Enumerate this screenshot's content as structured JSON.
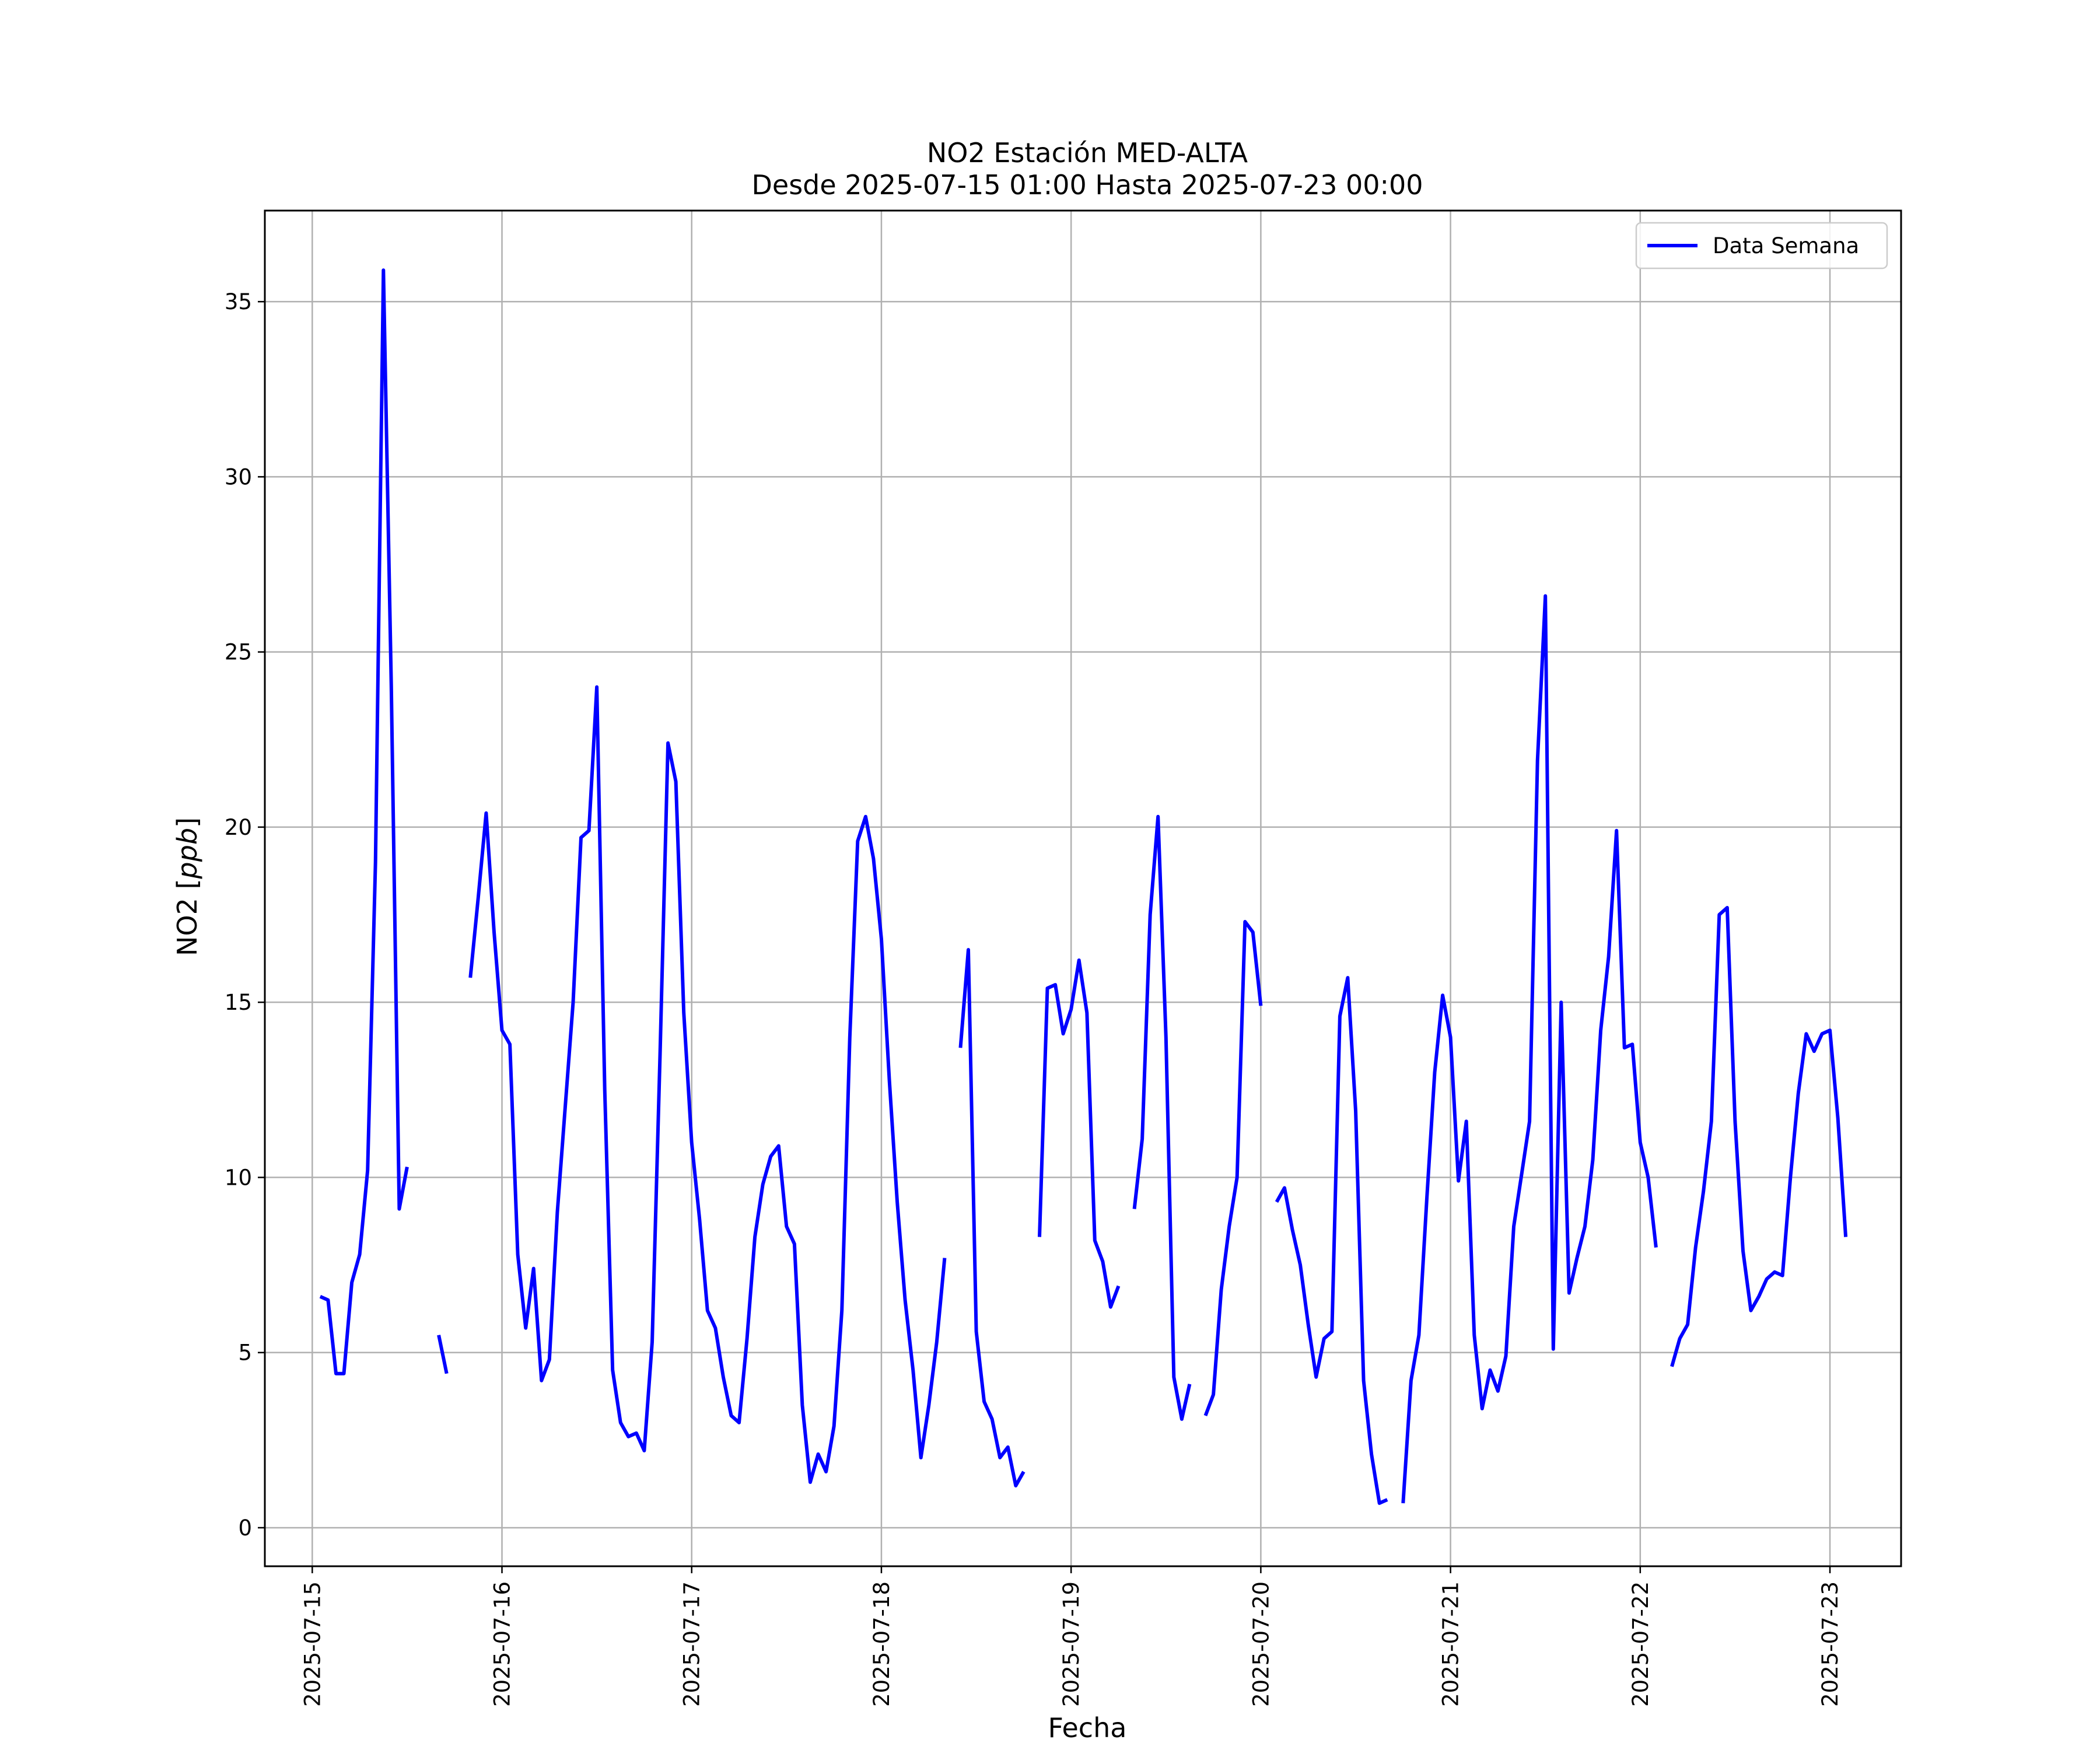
{
  "chart_data": {
    "type": "line",
    "title": "NO2 Estación MED-ALTA",
    "subtitle": "Desde 2025-07-15 01:00 Hasta 2025-07-23 00:00",
    "xlabel": "Fecha",
    "ylabel_prefix": "NO2 [",
    "ylabel_unit": "ppb",
    "ylabel_suffix": "]",
    "xlim": [
      "2025-07-14 18:00",
      "2025-07-23 09:00"
    ],
    "ylim": [
      -1.1,
      37.6
    ],
    "x_ticks": [
      "2025-07-15",
      "2025-07-16",
      "2025-07-17",
      "2025-07-18",
      "2025-07-19",
      "2025-07-20",
      "2025-07-21",
      "2025-07-22",
      "2025-07-23"
    ],
    "y_ticks": [
      0,
      5,
      10,
      15,
      20,
      25,
      30,
      35
    ],
    "grid": true,
    "legend_position": "upper-right",
    "colors": {
      "series": "#0000ff",
      "grid": "#b0b0b0",
      "frame": "#000000"
    },
    "series": [
      {
        "name": "Data Semana",
        "start": "2025-07-15 01:00",
        "interval_hours": 1,
        "values": [
          6.6,
          6.5,
          4.4,
          4.4,
          7.0,
          7.8,
          10.2,
          19.0,
          35.9,
          24.0,
          9.1,
          10.3,
          null,
          null,
          null,
          5.5,
          4.4,
          null,
          null,
          15.7,
          18.0,
          20.4,
          17.0,
          14.2,
          13.8,
          7.8,
          5.7,
          7.4,
          4.2,
          4.8,
          9.0,
          12.0,
          15.0,
          19.7,
          19.9,
          24.0,
          12.5,
          4.5,
          3.0,
          2.6,
          2.7,
          2.2,
          5.3,
          13.5,
          22.4,
          21.3,
          14.7,
          11.0,
          8.8,
          6.2,
          5.7,
          4.3,
          3.2,
          3.0,
          5.4,
          8.3,
          9.8,
          10.6,
          10.9,
          8.6,
          8.1,
          3.5,
          1.3,
          2.1,
          1.6,
          2.9,
          6.2,
          14.0,
          19.6,
          20.3,
          19.1,
          16.8,
          12.8,
          9.3,
          6.5,
          4.5,
          2.0,
          3.5,
          5.3,
          7.7,
          null,
          13.7,
          16.5,
          5.6,
          3.6,
          3.1,
          2.0,
          2.3,
          1.2,
          1.6,
          null,
          8.3,
          15.4,
          15.5,
          14.1,
          14.8,
          16.2,
          14.7,
          8.2,
          7.6,
          6.3,
          6.9,
          null,
          9.1,
          11.1,
          17.5,
          20.3,
          14.0,
          4.3,
          3.1,
          4.1,
          null,
          3.2,
          3.8,
          6.8,
          8.6,
          10.0,
          17.3,
          17.0,
          14.9,
          null,
          9.3,
          9.7,
          8.5,
          7.5,
          5.8,
          4.3,
          5.4,
          5.6,
          14.6,
          15.7,
          11.9,
          4.2,
          2.1,
          0.7,
          0.8,
          null,
          0.7,
          4.2,
          5.5,
          9.4,
          13.0,
          15.2,
          14.0,
          9.9,
          11.6,
          5.5,
          3.4,
          4.5,
          3.9,
          4.9,
          8.6,
          10.1,
          11.6,
          21.9,
          26.6,
          5.1,
          15.0,
          6.7,
          7.7,
          8.6,
          10.5,
          14.2,
          16.3,
          19.9,
          13.7,
          13.8,
          11.0,
          10.0,
          8.0,
          null,
          4.6,
          5.4,
          5.8,
          8.0,
          9.6,
          11.6,
          17.5,
          17.7,
          11.6,
          7.9,
          6.2,
          6.6,
          7.1,
          7.3,
          7.2,
          10.0,
          12.4,
          14.1,
          13.6,
          14.1,
          14.2,
          11.7,
          8.3
        ]
      }
    ]
  }
}
